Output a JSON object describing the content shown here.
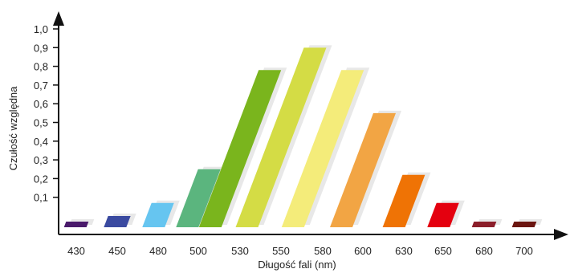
{
  "chart_data": {
    "type": "bar",
    "title": "",
    "xlabel": "Długość fali (nm)",
    "ylabel": "Czułość względna",
    "ylim": [
      0,
      1.0
    ],
    "grid": false,
    "yticks": [
      "0,1",
      "0,2",
      "0,3",
      "0,4",
      "0,5",
      "0,6",
      "0,7",
      "0,8",
      "0,9",
      "1,0"
    ],
    "categories": [
      "430",
      "450",
      "480",
      "500",
      "530",
      "550",
      "580",
      "600",
      "630",
      "650",
      "680",
      "700"
    ],
    "values": [
      0.03,
      0.06,
      0.13,
      0.31,
      0.84,
      0.96,
      0.84,
      0.61,
      0.28,
      0.13,
      0.03,
      0.03
    ],
    "colors": [
      "#4a1a6b",
      "#3a4aa0",
      "#66c5f0",
      "#5bb57e",
      "#7ab51d",
      "#d4dc45",
      "#f4ec7a",
      "#f2a544",
      "#ef7305",
      "#e4000f",
      "#8b1e2a",
      "#6b1510"
    ]
  }
}
